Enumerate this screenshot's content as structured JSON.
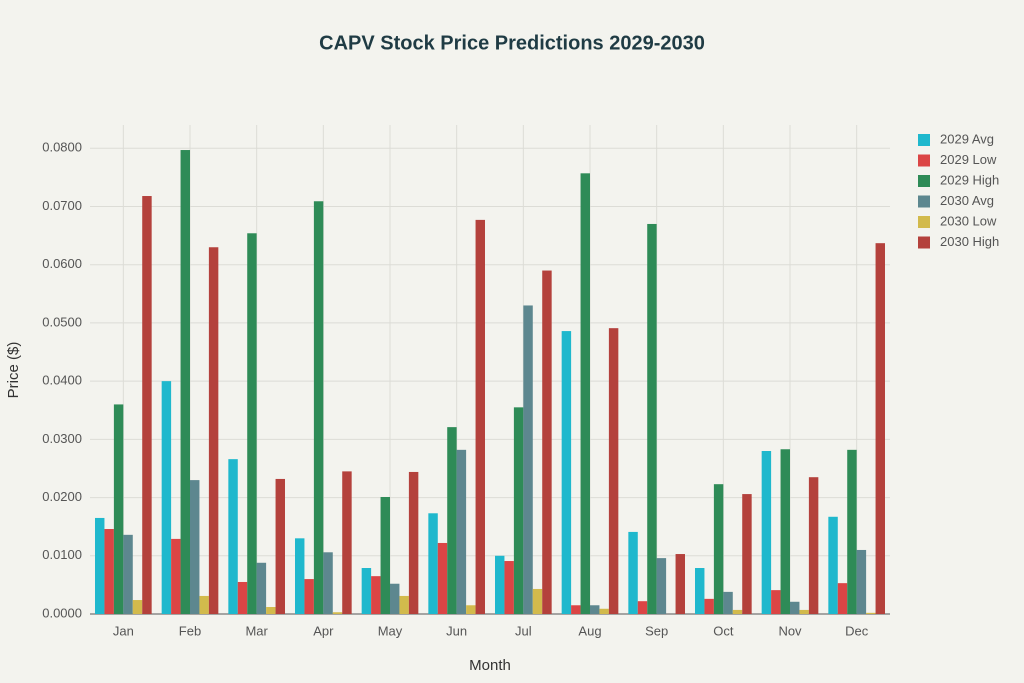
{
  "chart_data": {
    "type": "bar",
    "title": "CAPV Stock Price Predictions 2029-2030",
    "xlabel": "Month",
    "ylabel": "Price ($)",
    "categories": [
      "Jan",
      "Feb",
      "Mar",
      "Apr",
      "May",
      "Jun",
      "Jul",
      "Aug",
      "Sep",
      "Oct",
      "Nov",
      "Dec"
    ],
    "series": [
      {
        "name": "2029 Avg",
        "color": "#1fb8cd",
        "values": [
          0.0165,
          0.04,
          0.0266,
          0.013,
          0.0079,
          0.0173,
          0.01,
          0.0486,
          0.0141,
          0.0079,
          0.028,
          0.0167
        ]
      },
      {
        "name": "2029 Low",
        "color": "#db4545",
        "values": [
          0.0146,
          0.0129,
          0.0055,
          0.006,
          0.0065,
          0.0122,
          0.0091,
          0.0015,
          0.0022,
          0.0026,
          0.0041,
          0.0053
        ]
      },
      {
        "name": "2029 High",
        "color": "#2e8b57",
        "values": [
          0.036,
          0.0797,
          0.0654,
          0.0709,
          0.0201,
          0.0321,
          0.0355,
          0.0757,
          0.067,
          0.0223,
          0.0283,
          0.0282
        ]
      },
      {
        "name": "2030 Avg",
        "color": "#5d878f",
        "values": [
          0.0136,
          0.023,
          0.0088,
          0.0106,
          0.0052,
          0.0282,
          0.053,
          0.0015,
          0.0096,
          0.0038,
          0.0021,
          0.011
        ]
      },
      {
        "name": "2030 Low",
        "color": "#d2ba4c",
        "values": [
          0.0024,
          0.0031,
          0.0012,
          0.0003,
          0.0031,
          0.0015,
          0.0043,
          0.0009,
          0,
          0.0007,
          0.0007,
          0.0002
        ]
      },
      {
        "name": "2030 High",
        "color": "#b4413c",
        "values": [
          0.0718,
          0.063,
          0.0232,
          0.0245,
          0.0244,
          0.0677,
          0.059,
          0.0491,
          0.0103,
          0.0206,
          0.0235,
          0.0637
        ]
      }
    ],
    "ylim": [
      0,
      0.084
    ],
    "yticks": [
      {
        "value": 0,
        "label": "0.0000"
      },
      {
        "value": 0.01,
        "label": "0.0100"
      },
      {
        "value": 0.02,
        "label": "0.0200"
      },
      {
        "value": 0.03,
        "label": "0.0300"
      },
      {
        "value": 0.04,
        "label": "0.0400"
      },
      {
        "value": 0.05,
        "label": "0.0500"
      },
      {
        "value": 0.06,
        "label": "0.0600"
      },
      {
        "value": 0.07,
        "label": "0.0700"
      },
      {
        "value": 0.08,
        "label": "0.0800"
      }
    ],
    "grid": true,
    "legend": "top-right"
  }
}
